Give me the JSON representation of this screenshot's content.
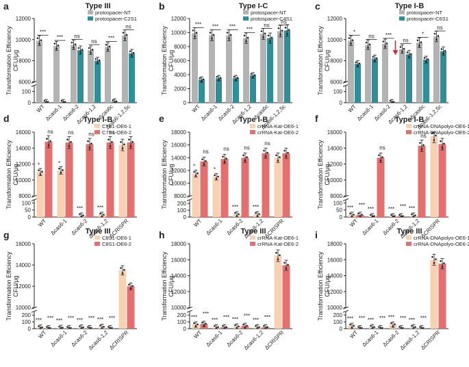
{
  "figure": {
    "y_axis_title_line1": "Transformation Efficiency",
    "y_axis_title_line2": "CFU/μg",
    "significance_labels": [
      "***",
      "*",
      "ns"
    ],
    "colors": {
      "gray": "#b3b3b3",
      "teal": "#2f8f98",
      "peach": "#f8d0b2",
      "pink": "#e36f6f",
      "arrow": "#e0202e",
      "ink": "#222222"
    }
  },
  "chart_data": [
    {
      "panel": "a",
      "type": "bar",
      "title": "Type III",
      "legend": [
        "protospacer-NT",
        "protospacer-C2S1"
      ],
      "series_colors": [
        "gray",
        "teal"
      ],
      "categories": [
        "WT",
        "Δcas6-1",
        "Δcas6-2",
        "Δcas6-1,2",
        "Δcas6c",
        "Δcas6-1,2,5c"
      ],
      "series": [
        {
          "name": "protospacer-NT",
          "values": [
            9900,
            9400,
            9500,
            9000,
            9300,
            10400
          ]
        },
        {
          "name": "protospacer-C2S1",
          "values": [
            5,
            5,
            9000,
            8000,
            10,
            8700
          ]
        }
      ],
      "significance": [
        "***",
        "***",
        "ns",
        "ns",
        "***",
        "ns"
      ],
      "yticks_lower": [
        0,
        100
      ],
      "yticks_upper": [
        6000,
        8000,
        10000,
        12000
      ],
      "ylim_lower": [
        0,
        150
      ],
      "ylim_upper": [
        6000,
        12000
      ]
    },
    {
      "panel": "b",
      "type": "bar",
      "title": "Type I-C",
      "legend": [
        "protospacer-NT",
        "protospacer-C4S1"
      ],
      "series_colors": [
        "gray",
        "teal"
      ],
      "categories": [
        "WT",
        "Δcas6-1",
        "Δcas6-2",
        "Δcas6-1,2",
        "Δcas6c",
        "Δcas6-1,2,5c"
      ],
      "series": [
        {
          "name": "protospacer-NT",
          "values": [
            9900,
            9600,
            9600,
            9200,
            9800,
            10200
          ]
        },
        {
          "name": "protospacer-C4S1",
          "values": [
            3300,
            3500,
            3500,
            3900,
            9200,
            10300
          ]
        }
      ],
      "significance": [
        "***",
        "***",
        "***",
        "***",
        "ns",
        "ns"
      ],
      "yticks": [
        0,
        2000,
        4000,
        6000,
        8000,
        10000,
        12000
      ],
      "ylim": [
        0,
        12000
      ]
    },
    {
      "panel": "c",
      "type": "bar",
      "title": "Type I-B",
      "legend": [
        "protospacer-NT",
        "protospacer-C6S1"
      ],
      "series_colors": [
        "gray",
        "teal"
      ],
      "categories": [
        "WT",
        "Δcas6-1",
        "Δcas6-2",
        "Δcas6-1,2",
        "Δcas6c",
        "Δcas6-1,2,5c"
      ],
      "series": [
        {
          "name": "protospacer-NT",
          "values": [
            9900,
            9500,
            9600,
            9100,
            9700,
            10300
          ]
        },
        {
          "name": "protospacer-C6S1",
          "values": [
            7700,
            8200,
            5,
            8600,
            8100,
            8900
          ]
        }
      ],
      "significance": [
        "*",
        "ns",
        "***",
        "ns",
        "*",
        "ns"
      ],
      "arrow_at_category": "Δcas6-2",
      "yticks_lower": [
        0,
        100
      ],
      "yticks_upper": [
        6000,
        8000,
        10000,
        12000
      ],
      "ylim_lower": [
        0,
        150
      ],
      "ylim_upper": [
        6000,
        12000
      ]
    },
    {
      "panel": "d",
      "type": "bar",
      "title": "Type I-B",
      "legend": [
        "C7S1-OE6-1",
        "C7S1-OE6-2"
      ],
      "series_colors": [
        "peach",
        "pink"
      ],
      "categories": [
        "WT",
        "Δcas6-1",
        "Δcas6-2",
        "Δcas6-1,2",
        "ΔCRISPR"
      ],
      "series": [
        {
          "name": "C7S1-OE6-1",
          "values": [
            11000,
            11200,
            10,
            15,
            14400
          ]
        },
        {
          "name": "C7S1-OE6-2",
          "values": [
            14800,
            14700,
            14500,
            14700,
            14700
          ]
        }
      ],
      "significance": [
        "*",
        "*",
        "***",
        "***",
        ""
      ],
      "significance_2": [
        "ns",
        "ns",
        "ns",
        "ns",
        ""
      ],
      "yticks_lower": [
        0,
        50,
        100
      ],
      "yticks_upper": [
        8000,
        10000,
        12000,
        14000,
        16000
      ],
      "ylim_lower": [
        0,
        120
      ],
      "ylim_upper": [
        8000,
        16000
      ]
    },
    {
      "panel": "e",
      "type": "bar",
      "title": "Type I-B",
      "legend": [
        "crRNA-Kat-OE6-1",
        "crRNA-Kat-OE6-2"
      ],
      "series_colors": [
        "peach",
        "pink"
      ],
      "categories": [
        "WT",
        "Δcas6-1",
        "Δcas6-2",
        "Δcas6-1,2",
        "ΔCRISPR"
      ],
      "series": [
        {
          "name": "crRNA-Kat-OE6-1",
          "values": [
            11500,
            11000,
            40,
            40,
            14000
          ]
        },
        {
          "name": "crRNA-Kat-OE6-2",
          "values": [
            13400,
            13800,
            14000,
            14700,
            14700
          ]
        }
      ],
      "significance": [
        "*",
        "*",
        "***",
        "***",
        ""
      ],
      "significance_2": [
        "ns",
        "ns",
        "ns",
        "ns",
        ""
      ],
      "yticks_lower": [
        0,
        100,
        200
      ],
      "yticks_upper": [
        8000,
        10000,
        12000,
        14000,
        16000,
        18000
      ],
      "ylim_lower": [
        0,
        250
      ],
      "ylim_upper": [
        8000,
        18000
      ]
    },
    {
      "panel": "f",
      "type": "bar",
      "title": "Type I-B",
      "legend": [
        "crRNA-DNApolyo-OE6-1",
        "crRNA-DNApolyo-OE6-2"
      ],
      "series_colors": [
        "peach",
        "pink"
      ],
      "categories": [
        "WT",
        "Δcas6-1",
        "Δcas6-2",
        "Δcas6-1,2",
        "ΔCRISPR"
      ],
      "series": [
        {
          "name": "crRNA-DNApolyo-OE6-1",
          "values": [
            15,
            5,
            5,
            10,
            15500
          ]
        },
        {
          "name": "crRNA-DNApolyo-OE6-2",
          "values": [
            15,
            12800,
            5,
            14300,
            14500
          ]
        }
      ],
      "significance": [
        "***",
        "***",
        "***",
        "***",
        ""
      ],
      "significance_2": [
        "***",
        "ns",
        "***",
        "ns",
        ""
      ],
      "yticks_lower": [
        0,
        50,
        100
      ],
      "yticks_upper": [
        8000,
        10000,
        12000,
        14000,
        16000
      ],
      "ylim_lower": [
        0,
        120
      ],
      "ylim_upper": [
        8000,
        16000
      ]
    },
    {
      "panel": "g",
      "type": "bar",
      "title": "Type III",
      "legend": [
        "C8S1-OE6-1",
        "C8S1-OE6-2"
      ],
      "series_colors": [
        "peach",
        "pink"
      ],
      "categories": [
        "WT",
        "Δcas6-1",
        "Δcas6-2",
        "Δcas6-1,2",
        "ΔCRISPR"
      ],
      "series": [
        {
          "name": "C8S1-OE6-1",
          "values": [
            15,
            10,
            15,
            25,
            13500
          ]
        },
        {
          "name": "C8S1-OE6-2",
          "values": [
            5,
            5,
            5,
            5,
            12000
          ]
        }
      ],
      "significance": [
        "***",
        "***",
        "***",
        "***",
        ""
      ],
      "significance_2": [
        "***",
        "***",
        "***",
        "***",
        ""
      ],
      "yticks_lower": [
        0,
        100,
        200
      ],
      "yticks_upper": [
        10000,
        12000,
        14000,
        16000
      ],
      "ylim_lower": [
        0,
        250
      ],
      "ylim_upper": [
        10000,
        16000
      ]
    },
    {
      "panel": "h",
      "type": "bar",
      "title": "Type III",
      "legend": [
        "crRNA-Kat-OE6-1",
        "crRNA-Kat-OE6-2"
      ],
      "series_colors": [
        "peach",
        "pink"
      ],
      "categories": [
        "WT",
        "Δcas6-1",
        "Δcas6-2",
        "Δcas6-1,2",
        "ΔCRISPR"
      ],
      "series": [
        {
          "name": "crRNA-Kat-OE6-1",
          "values": [
            60,
            20,
            30,
            20,
            16500
          ]
        },
        {
          "name": "crRNA-Kat-OE6-2",
          "values": [
            70,
            20,
            40,
            20,
            15300
          ]
        }
      ],
      "significance": [
        "***",
        "***",
        "***",
        "***",
        ""
      ],
      "significance_2": [
        "***",
        "***",
        "***",
        "***",
        ""
      ],
      "yticks_lower": [
        0,
        100,
        200
      ],
      "yticks_upper": [
        10000,
        12000,
        14000,
        16000,
        18000
      ],
      "ylim_lower": [
        0,
        250
      ],
      "ylim_upper": [
        10000,
        18000
      ]
    },
    {
      "panel": "i",
      "type": "bar",
      "title": "Type III",
      "legend": [
        "crRNA-DNApolyo-OE6-1",
        "crRNA-DNApolyo-OE6-2"
      ],
      "series_colors": [
        "peach",
        "pink"
      ],
      "categories": [
        "WT",
        "Δcas6-1",
        "Δcas6-2",
        "Δcas6-1,2",
        "ΔCRISPR"
      ],
      "series": [
        {
          "name": "crRNA-DNApolyo-OE6-1",
          "values": [
            40,
            20,
            60,
            20,
            16000
          ]
        },
        {
          "name": "crRNA-DNApolyo-OE6-2",
          "values": [
            5,
            5,
            5,
            5,
            15500
          ]
        }
      ],
      "significance": [
        "***",
        "***",
        "***",
        "***",
        ""
      ],
      "significance_2": [
        "***",
        "***",
        "***",
        "***",
        ""
      ],
      "yticks_lower": [
        0,
        100,
        200
      ],
      "yticks_upper": [
        10000,
        12000,
        14000,
        16000,
        18000
      ],
      "ylim_lower": [
        0,
        250
      ],
      "ylim_upper": [
        10000,
        18000
      ]
    }
  ]
}
